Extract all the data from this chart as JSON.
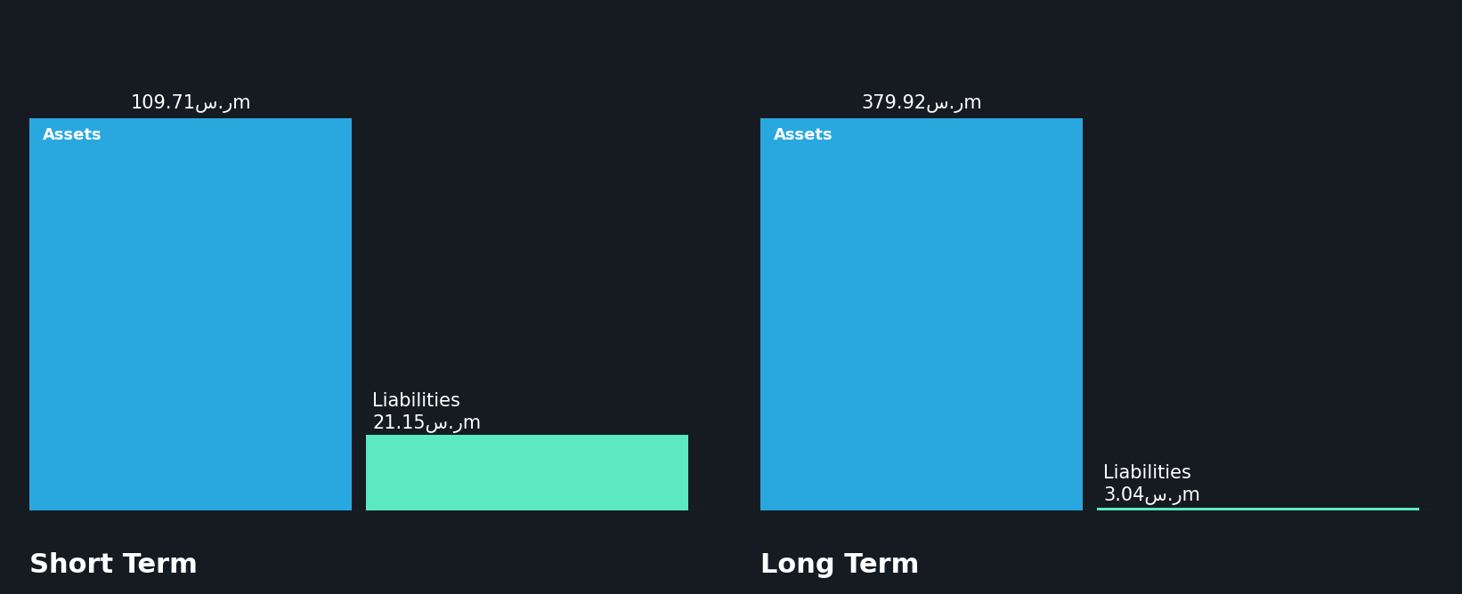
{
  "background_color": "#161b22",
  "sections": [
    {
      "label": "Short Term",
      "asset_value": 109.71,
      "liability_value": 21.15,
      "asset_label": "Assets",
      "liability_label": "Liabilities",
      "asset_value_text": "109.71س.رm",
      "liability_value_text": "21.15س.رm"
    },
    {
      "label": "Long Term",
      "asset_value": 379.92,
      "liability_value": 3.04,
      "asset_label": "Assets",
      "liability_label": "Liabilities",
      "asset_value_text": "379.92س.رm",
      "liability_value_text": "3.04س.رm"
    }
  ],
  "asset_color": "#29a8e0",
  "liability_color": "#5ce8c0",
  "text_color": "#ffffff",
  "section_label_font_size": 22,
  "value_font_size": 15,
  "bar_label_font_size": 13
}
